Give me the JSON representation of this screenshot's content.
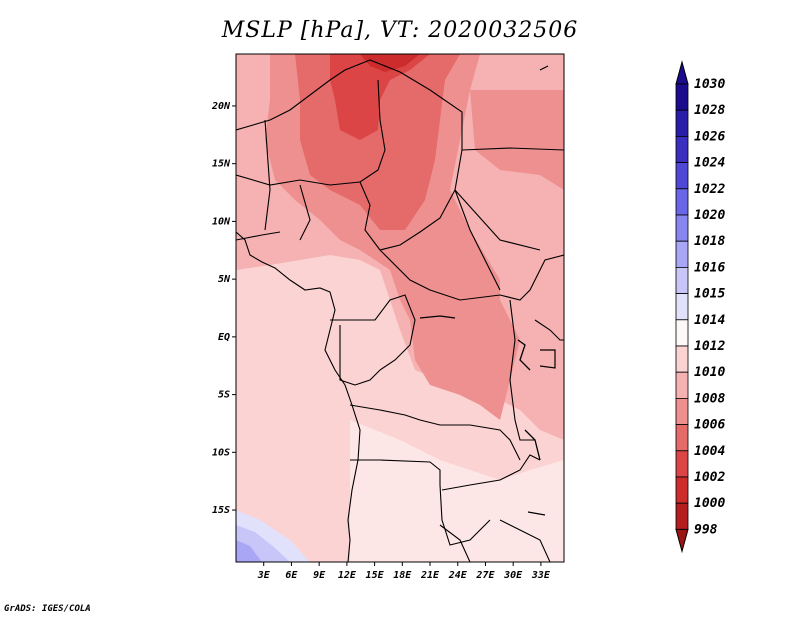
{
  "title": "MSLP [hPa], VT: 2020032506",
  "credit": "GrADS: IGES/COLA",
  "map": {
    "region": "Central Africa",
    "lon_range": [
      0,
      35.5
    ],
    "lat_range": [
      -19.5,
      24.5
    ],
    "lon_ticks": [
      {
        "label": "3E",
        "value": 3
      },
      {
        "label": "6E",
        "value": 6
      },
      {
        "label": "9E",
        "value": 9
      },
      {
        "label": "12E",
        "value": 12
      },
      {
        "label": "15E",
        "value": 15
      },
      {
        "label": "18E",
        "value": 18
      },
      {
        "label": "21E",
        "value": 21
      },
      {
        "label": "24E",
        "value": 24
      },
      {
        "label": "27E",
        "value": 27
      },
      {
        "label": "30E",
        "value": 30
      },
      {
        "label": "33E",
        "value": 33
      }
    ],
    "lat_ticks": [
      {
        "label": "20N",
        "value": 20
      },
      {
        "label": "15N",
        "value": 15
      },
      {
        "label": "10N",
        "value": 10
      },
      {
        "label": "5N",
        "value": 5
      },
      {
        "label": "EQ",
        "value": 0
      },
      {
        "label": "5S",
        "value": -5
      },
      {
        "label": "10S",
        "value": -10
      },
      {
        "label": "15S",
        "value": -15
      }
    ]
  },
  "colorbar": {
    "levels": [
      "1030",
      "1028",
      "1026",
      "1024",
      "1022",
      "1020",
      "1018",
      "1016",
      "1015",
      "1014",
      "1012",
      "1010",
      "1008",
      "1006",
      "1004",
      "1002",
      "1000",
      "998"
    ],
    "colors": [
      "#1a0c8c",
      "#2a1ea8",
      "#3c2fc0",
      "#4f47d6",
      "#6a66e8",
      "#8a86f0",
      "#a9a6f5",
      "#c8c6f9",
      "#e2e1fb",
      "#fff8f8",
      "#fbd3d3",
      "#f6b2b2",
      "#ee9090",
      "#e56a6a",
      "#dc4545",
      "#cc2c2c",
      "#b51e1e",
      "#9c1414"
    ]
  }
}
